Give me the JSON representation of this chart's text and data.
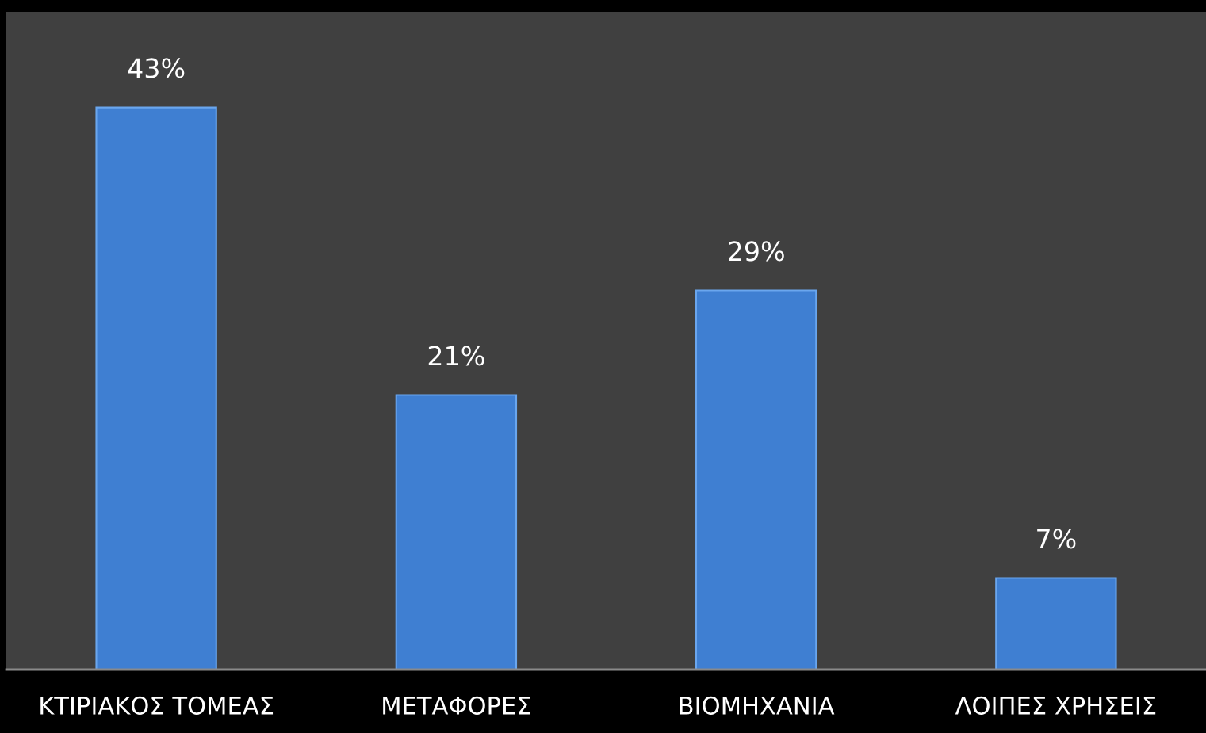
{
  "chart_data": {
    "type": "bar",
    "categories": [
      "ΚΤΙΡΙΑΚΟΣ ΤΟΜΕΑΣ",
      "ΜΕΤΑΦΟΡΕΣ",
      "ΒΙΟΜΗΧΑΝΙΑ",
      "ΛΟΙΠΕΣ ΧΡΗΣΕΙΣ"
    ],
    "values": [
      43,
      21,
      29,
      7
    ],
    "value_labels": [
      "43%",
      "21%",
      "29%",
      "7%"
    ],
    "color": "#3f7fd2",
    "grid": false,
    "legend": false
  }
}
